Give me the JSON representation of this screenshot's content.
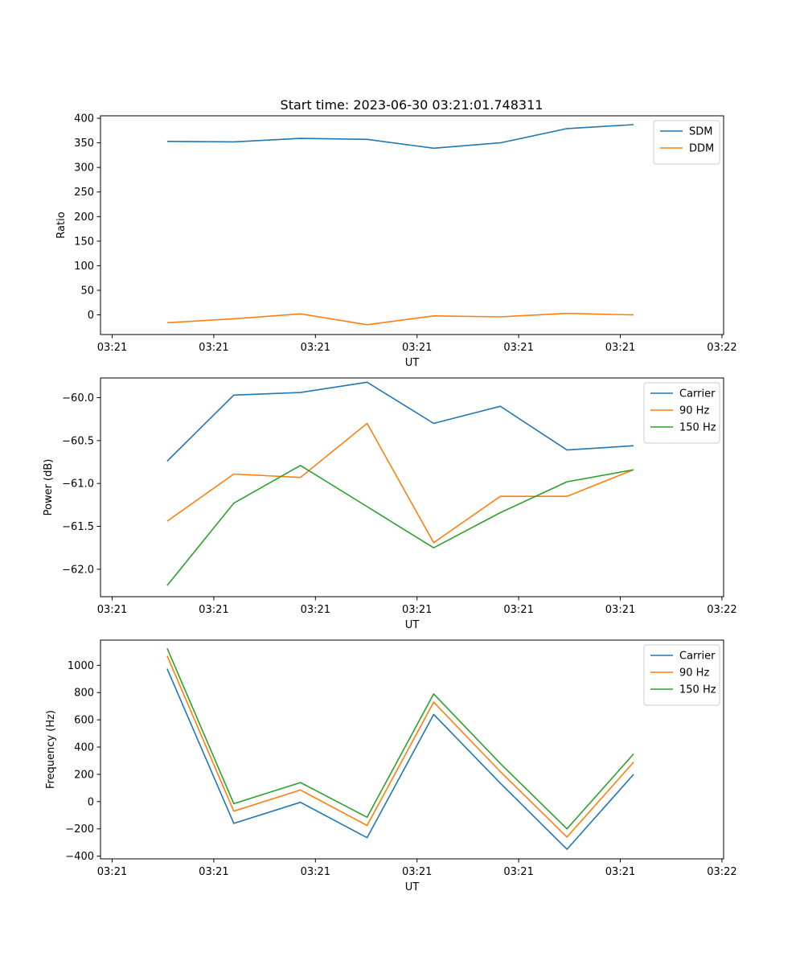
{
  "figure": {
    "title": "Start time: 2023-06-30 03:21:01.748311"
  },
  "chart_data": [
    {
      "type": "line",
      "title": "Start time: 2023-06-30 03:21:01.748311",
      "xlabel": "UT",
      "ylabel": "Ratio",
      "x": [
        1,
        2,
        3,
        4,
        5,
        6,
        7,
        8
      ],
      "x_tick_values": [
        0.175,
        1.7,
        3.225,
        4.75,
        6.275,
        7.8,
        9.325
      ],
      "x_tick_labels": [
        "03:21",
        "03:21",
        "03:21",
        "03:21",
        "03:21",
        "03:21",
        "03:22"
      ],
      "xlim": [
        0.0,
        9.35
      ],
      "ylim": [
        -40,
        405
      ],
      "y_ticks": [
        0,
        50,
        100,
        150,
        200,
        250,
        300,
        350,
        400
      ],
      "y_tick_labels": [
        "0",
        "50",
        "100",
        "150",
        "200",
        "250",
        "300",
        "350",
        "400"
      ],
      "legend_loc": "upper right",
      "grid": false,
      "series": [
        {
          "name": "SDM",
          "color": "#1f77b4",
          "values": [
            353,
            352,
            359,
            357,
            339,
            350,
            379,
            387
          ]
        },
        {
          "name": "DDM",
          "color": "#ff7f0e",
          "values": [
            -16,
            -8,
            2,
            -20,
            -2,
            -4,
            3,
            0
          ]
        }
      ]
    },
    {
      "type": "line",
      "title": "",
      "xlabel": "UT",
      "ylabel": "Power (dB)",
      "x": [
        1,
        2,
        3,
        4,
        5,
        6,
        7,
        8
      ],
      "x_tick_values": [
        0.175,
        1.7,
        3.225,
        4.75,
        6.275,
        7.8,
        9.325
      ],
      "x_tick_labels": [
        "03:21",
        "03:21",
        "03:21",
        "03:21",
        "03:21",
        "03:21",
        "03:22"
      ],
      "xlim": [
        0.0,
        9.35
      ],
      "ylim": [
        -62.32,
        -59.77
      ],
      "y_ticks": [
        -62.0,
        -61.5,
        -61.0,
        -60.5,
        -60.0
      ],
      "y_tick_labels": [
        "−62.0",
        "−61.5",
        "−61.0",
        "−60.5",
        "−60.0"
      ],
      "legend_loc": "upper right",
      "grid": false,
      "series": [
        {
          "name": "Carrier",
          "color": "#1f77b4",
          "values": [
            -60.74,
            -59.97,
            -59.94,
            -59.82,
            -60.3,
            -60.1,
            -60.61,
            -60.56
          ]
        },
        {
          "name": "90 Hz",
          "color": "#ff7f0e",
          "values": [
            -61.44,
            -60.89,
            -60.93,
            -60.3,
            -61.69,
            -61.15,
            -61.15,
            -60.84
          ]
        },
        {
          "name": "150 Hz",
          "color": "#2ca02c",
          "values": [
            -62.19,
            -61.23,
            -60.79,
            -61.27,
            -61.75,
            -61.34,
            -60.98,
            -60.84
          ]
        }
      ]
    },
    {
      "type": "line",
      "title": "",
      "xlabel": "UT",
      "ylabel": "Frequency (Hz)",
      "x": [
        1,
        2,
        3,
        4,
        5,
        6,
        7,
        8
      ],
      "x_tick_values": [
        0.175,
        1.7,
        3.225,
        4.75,
        6.275,
        7.8,
        9.325
      ],
      "x_tick_labels": [
        "03:21",
        "03:21",
        "03:21",
        "03:21",
        "03:21",
        "03:21",
        "03:22"
      ],
      "xlim": [
        0.0,
        9.35
      ],
      "ylim": [
        -420,
        1185
      ],
      "y_ticks": [
        -400,
        -200,
        0,
        200,
        400,
        600,
        800,
        1000
      ],
      "y_tick_labels": [
        "−400",
        "−200",
        "0",
        "200",
        "400",
        "600",
        "800",
        "1000"
      ],
      "legend_loc": "upper right",
      "grid": false,
      "series": [
        {
          "name": "Carrier",
          "color": "#1f77b4",
          "values": [
            975,
            -160,
            -5,
            -265,
            640,
            135,
            -350,
            200
          ]
        },
        {
          "name": "90 Hz",
          "color": "#ff7f0e",
          "values": [
            1070,
            -70,
            85,
            -175,
            730,
            220,
            -260,
            290
          ]
        },
        {
          "name": "150 Hz",
          "color": "#2ca02c",
          "values": [
            1125,
            -15,
            140,
            -115,
            790,
            280,
            -200,
            350
          ]
        }
      ]
    }
  ]
}
